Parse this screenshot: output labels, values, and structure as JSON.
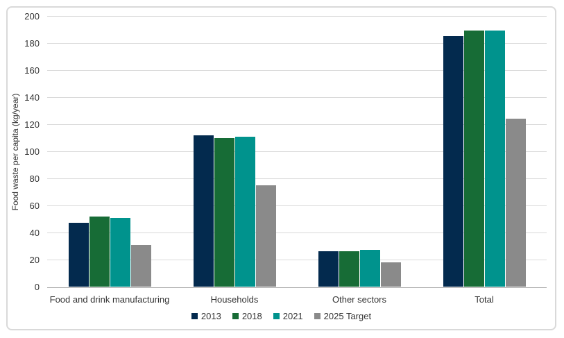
{
  "chart_data": {
    "type": "bar",
    "title": "",
    "xlabel": "",
    "ylabel": "Food waste per capita (kg/year)",
    "ylim": [
      0,
      200
    ],
    "ytick_step": 20,
    "grid": true,
    "legend_position": "bottom",
    "categories": [
      "Food and drink manufacturing",
      "Households",
      "Other sectors",
      "Total"
    ],
    "series": [
      {
        "name": "2013",
        "color": "#032A4E",
        "values": [
          47,
          112,
          26,
          185
        ]
      },
      {
        "name": "2018",
        "color": "#176C36",
        "values": [
          52,
          110,
          26,
          189
        ]
      },
      {
        "name": "2021",
        "color": "#00938D",
        "values": [
          51,
          111,
          27,
          189
        ]
      },
      {
        "name": "2025 Target",
        "color": "#8A8A8A",
        "values": [
          31,
          75,
          18,
          124
        ]
      }
    ],
    "style": {
      "grid_color": "#d9d9d9",
      "axis_line_color": "#a6a6a6",
      "text_color": "#333333",
      "frame_border_color": "#d9d9d9",
      "background_color": "#ffffff"
    }
  }
}
